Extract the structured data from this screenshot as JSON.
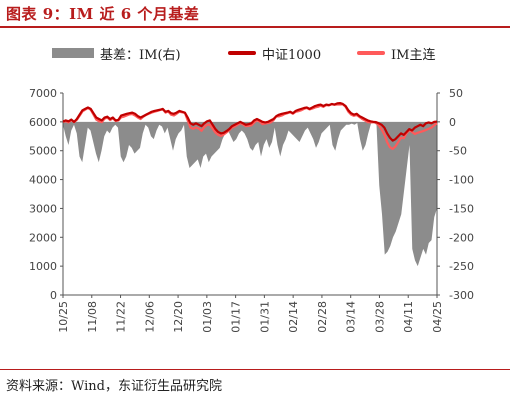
{
  "title": "图表 9：IM 近 6 个月基差",
  "source": "资料来源：Wind，东证衍生品研究院",
  "colors": {
    "title": "#b81d1d",
    "basis": "#8c8c8c",
    "index": "#c00000",
    "main": "#ff5a5a"
  },
  "chart_data": {
    "type": "line",
    "y_left": {
      "min": 0,
      "max": 7000,
      "step": 1000,
      "ticks": [
        "0",
        "1000",
        "2000",
        "3000",
        "4000",
        "5000",
        "6000",
        "7000"
      ]
    },
    "y_right": {
      "min": -300,
      "max": 50,
      "step": 50,
      "ticks": [
        "50",
        "0",
        "-50",
        "-100",
        "-150",
        "-200",
        "-250",
        "-300"
      ]
    },
    "x_tick_labels": [
      "10/25",
      "11/08",
      "11/22",
      "12/06",
      "12/20",
      "01/03",
      "01/17",
      "01/31",
      "02/14",
      "02/28",
      "03/14",
      "03/28",
      "04/11",
      "04/25"
    ],
    "legend_position": "top",
    "series": [
      {
        "name": "基差：IM(右)",
        "kind": "area",
        "axis": "right",
        "values": [
          -5,
          -25,
          -40,
          -15,
          -5,
          -20,
          -60,
          -70,
          -40,
          -10,
          -15,
          -35,
          -55,
          -70,
          -50,
          -25,
          -15,
          -20,
          -10,
          -5,
          -10,
          -60,
          -70,
          -60,
          -40,
          -45,
          -55,
          -50,
          -45,
          -20,
          -5,
          -10,
          -25,
          -30,
          -15,
          -5,
          -8,
          -20,
          -10,
          -30,
          -50,
          -30,
          -20,
          -15,
          -5,
          -60,
          -80,
          -75,
          -70,
          -65,
          -80,
          -60,
          -55,
          -70,
          -60,
          -55,
          -50,
          -45,
          -30,
          -20,
          -15,
          -25,
          -35,
          -30,
          -20,
          -15,
          -20,
          -30,
          -45,
          -50,
          -40,
          -35,
          -60,
          -40,
          -30,
          -45,
          -35,
          -10,
          -40,
          -60,
          -40,
          -30,
          -15,
          -20,
          -25,
          -30,
          -35,
          -25,
          -15,
          -10,
          -20,
          -30,
          -45,
          -35,
          -20,
          -15,
          -10,
          -5,
          -40,
          -50,
          -30,
          -15,
          -10,
          -5,
          -5,
          -3,
          -5,
          -2,
          -30,
          -50,
          -40,
          -20,
          -3,
          -2,
          -5,
          -110,
          -160,
          -230,
          -225,
          -215,
          -200,
          -190,
          -175,
          -160,
          -120,
          -80,
          -40,
          -220,
          -240,
          -250,
          -235,
          -220,
          -230,
          -210,
          -205,
          -165,
          -150
        ]
      },
      {
        "name": "中证1000",
        "kind": "line",
        "axis": "left",
        "values": [
          6010,
          6050,
          6020,
          6080,
          6000,
          6100,
          6250,
          6400,
          6450,
          6500,
          6450,
          6300,
          6150,
          6100,
          6050,
          6150,
          6180,
          6100,
          6150,
          6050,
          6070,
          6220,
          6250,
          6280,
          6300,
          6320,
          6280,
          6200,
          6150,
          6200,
          6250,
          6300,
          6350,
          6380,
          6400,
          6420,
          6450,
          6350,
          6380,
          6300,
          6280,
          6320,
          6380,
          6350,
          6320,
          6150,
          5950,
          5900,
          5950,
          5900,
          5850,
          5950,
          6020,
          6050,
          5900,
          5750,
          5650,
          5600,
          5620,
          5680,
          5750,
          5850,
          5900,
          5950,
          6000,
          5950,
          5900,
          5920,
          5950,
          6050,
          6100,
          6050,
          6000,
          5980,
          6000,
          6050,
          6100,
          6200,
          6250,
          6280,
          6300,
          6320,
          6350,
          6300,
          6380,
          6420,
          6450,
          6480,
          6500,
          6450,
          6500,
          6550,
          6580,
          6600,
          6550,
          6600,
          6580,
          6620,
          6600,
          6640,
          6650,
          6620,
          6550,
          6400,
          6300,
          6250,
          6280,
          6200,
          6150,
          6100,
          6050,
          6020,
          6000,
          5990,
          5950,
          5900,
          5800,
          5600,
          5450,
          5350,
          5400,
          5500,
          5600,
          5550,
          5650,
          5750,
          5700,
          5800,
          5850,
          5900,
          5850,
          5950,
          5980,
          5950,
          6000,
          6010
        ]
      },
      {
        "name": "IM主连",
        "kind": "line",
        "axis": "left",
        "values": [
          6000,
          6020,
          5980,
          6060,
          5990,
          6070,
          6210,
          6360,
          6420,
          6480,
          6420,
          6250,
          6080,
          6020,
          5990,
          6110,
          6150,
          6060,
          6120,
          6030,
          6050,
          6160,
          6180,
          6220,
          6260,
          6270,
          6220,
          6150,
          6100,
          6180,
          6240,
          6280,
          6320,
          6350,
          6380,
          6410,
          6440,
          6320,
          6360,
          6250,
          6220,
          6280,
          6350,
          6330,
          6310,
          6050,
          5800,
          5760,
          5810,
          5770,
          5690,
          5820,
          5900,
          5900,
          5770,
          5630,
          5550,
          5510,
          5560,
          5630,
          5710,
          5800,
          5840,
          5900,
          5960,
          5910,
          5850,
          5860,
          5880,
          5980,
          6050,
          6010,
          5920,
          5940,
          5960,
          5980,
          6060,
          6190,
          6190,
          6220,
          6270,
          6300,
          6330,
          6280,
          6350,
          6370,
          6400,
          6450,
          6480,
          6430,
          6460,
          6500,
          6520,
          6560,
          6520,
          6580,
          6570,
          6610,
          6590,
          6600,
          6600,
          6610,
          6520,
          6350,
          6250,
          6210,
          6240,
          6170,
          6100,
          6050,
          5990,
          5980,
          5990,
          5970,
          5880,
          5740,
          5560,
          5300,
          5120,
          5060,
          5150,
          5300,
          5450,
          5430,
          5600,
          5720,
          5650,
          5580,
          5620,
          5650,
          5680,
          5720,
          5760,
          5800,
          5880,
          5950
        ]
      }
    ]
  }
}
